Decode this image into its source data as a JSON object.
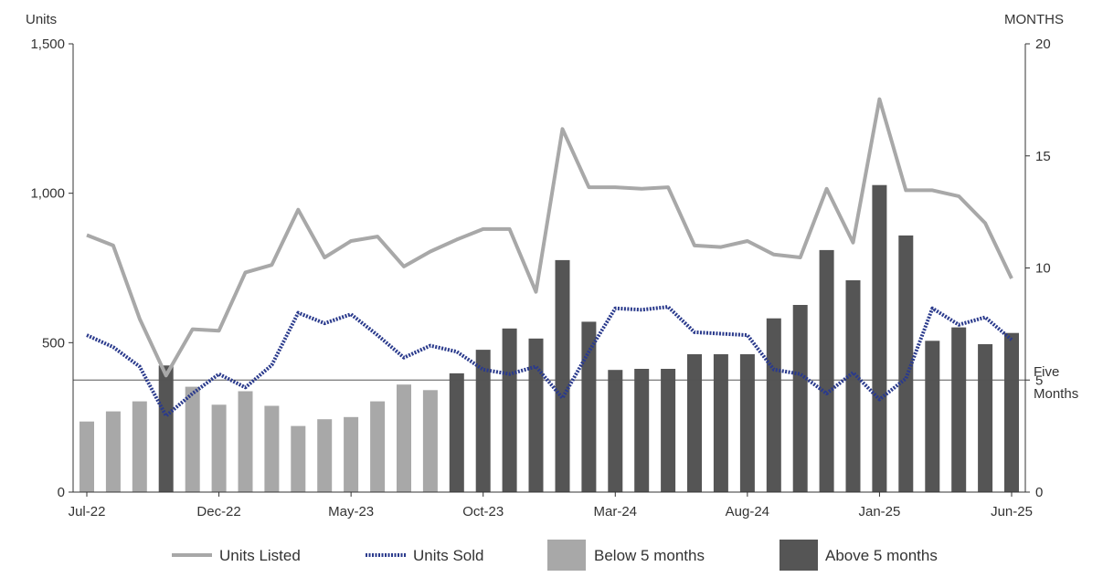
{
  "chart_data": {
    "type": "bar",
    "left_axis_label": "Units",
    "right_axis_label": "MONTHS",
    "y_left": {
      "min": 0,
      "max": 1500,
      "ticks": [
        0,
        500,
        1000,
        1500
      ],
      "tick_labels": [
        "0",
        "500",
        "1,000",
        "1,500"
      ]
    },
    "y_right": {
      "min": 0,
      "max": 20,
      "ticks": [
        0,
        5,
        10,
        15,
        20
      ],
      "tick_labels": [
        "0",
        "5",
        "10",
        "15",
        "20"
      ]
    },
    "categories": [
      "Jul-22",
      "Aug-22",
      "Sep-22",
      "Oct-22",
      "Nov-22",
      "Dec-22",
      "Jan-23",
      "Feb-23",
      "Mar-23",
      "Apr-23",
      "May-23",
      "Jun-23",
      "Jul-23",
      "Aug-23",
      "Sep-23",
      "Oct-23",
      "Nov-23",
      "Dec-23",
      "Jan-24",
      "Feb-24",
      "Mar-24",
      "Apr-24",
      "May-24",
      "Jun-24",
      "Jul-24",
      "Aug-24",
      "Sep-24",
      "Oct-24",
      "Nov-24",
      "Dec-24",
      "Jan-25",
      "Feb-25",
      "Mar-25",
      "Apr-25",
      "May-25",
      "Jun-25"
    ],
    "x_tick_labels": [
      {
        "index": 0,
        "label": "Jul-22"
      },
      {
        "index": 5,
        "label": "Dec-22"
      },
      {
        "index": 10,
        "label": "May-23"
      },
      {
        "index": 15,
        "label": "Oct-23"
      },
      {
        "index": 20,
        "label": "Mar-24"
      },
      {
        "index": 25,
        "label": "Aug-24"
      },
      {
        "index": 30,
        "label": "Jan-25"
      },
      {
        "index": 35,
        "label": "Jun-25"
      }
    ],
    "series": [
      {
        "name": "Units Listed",
        "axis": "left",
        "kind": "line",
        "style": "solid",
        "color": "#a8a8a8",
        "values": [
          860,
          825,
          580,
          390,
          545,
          540,
          735,
          760,
          945,
          785,
          840,
          855,
          755,
          805,
          845,
          880,
          880,
          670,
          1215,
          1020,
          1020,
          1015,
          1020,
          825,
          820,
          840,
          795,
          785,
          1015,
          835,
          1315,
          1010,
          1010,
          990,
          900,
          715
        ]
      },
      {
        "name": "Units Sold",
        "axis": "left",
        "kind": "line",
        "style": "dotted",
        "color": "#2a3a8c",
        "values": [
          525,
          485,
          420,
          255,
          330,
          395,
          350,
          425,
          600,
          565,
          595,
          525,
          450,
          490,
          470,
          410,
          395,
          420,
          315,
          470,
          615,
          610,
          620,
          535,
          530,
          525,
          410,
          395,
          330,
          400,
          310,
          380,
          615,
          560,
          585,
          510
        ]
      },
      {
        "name": "Below 5 months",
        "axis": "right",
        "kind": "bar",
        "color": "#a8a8a8"
      },
      {
        "name": "Above 5 months",
        "axis": "right",
        "kind": "bar",
        "color": "#555555"
      }
    ],
    "bars_months": [
      3.15,
      3.6,
      4.05,
      5.65,
      4.7,
      3.9,
      4.5,
      3.85,
      2.95,
      3.25,
      3.35,
      4.05,
      4.8,
      4.55,
      5.3,
      6.35,
      7.3,
      6.85,
      10.35,
      7.6,
      5.45,
      5.5,
      5.5,
      6.15,
      6.15,
      6.15,
      7.75,
      8.35,
      10.8,
      9.45,
      13.7,
      11.45,
      6.75,
      7.35,
      6.6,
      7.1
    ],
    "reference_line": {
      "value_months": 5,
      "label_line1": "Five",
      "label_line2": "Months",
      "color": "#555555"
    },
    "legend_position": "bottom",
    "grid": false
  }
}
